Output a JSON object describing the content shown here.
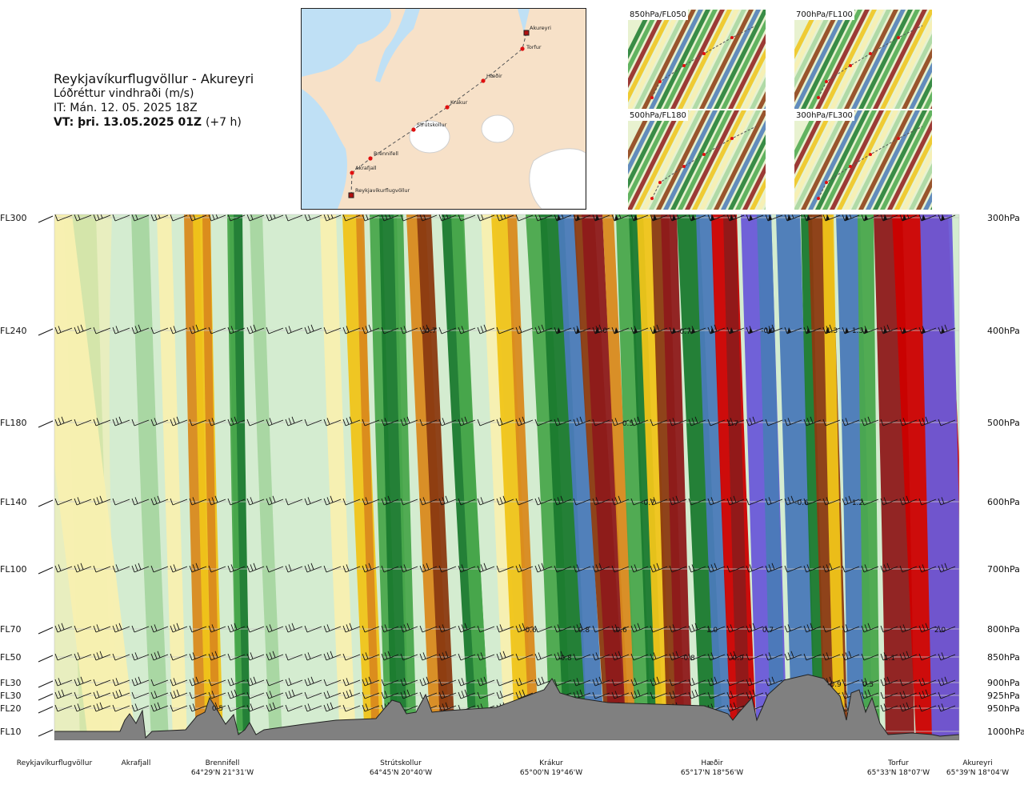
{
  "header": {
    "title": "Reykjavíkurflugvöllur - Akureyri",
    "subtitle": "Lóðréttur vindhraði (m/s)",
    "issue_time": "IT: Mán. 12. 05. 2025 18Z",
    "valid_time": "VT: þri. 13.05.2025 01Z",
    "valid_offset": "(+7 h)"
  },
  "route_map": {
    "points": [
      "Reykjavíkurflugvöllur",
      "Akrafjall",
      "Brennifell",
      "Strútskollur",
      "Krákur",
      "Hæðir",
      "Torfur",
      "Akureyri"
    ]
  },
  "thumbnails": [
    {
      "label": "850hPa/FL050"
    },
    {
      "label": "700hPa/FL100"
    },
    {
      "label": "500hPa/FL180"
    },
    {
      "label": "300hPa/FL300"
    }
  ],
  "chart_data": {
    "type": "heatmap",
    "title": "Lóðréttur vindhraði (m/s)",
    "levels": [
      {
        "fl": "FL300",
        "hpa": "300hPa"
      },
      {
        "fl": "FL240",
        "hpa": "400hPa"
      },
      {
        "fl": "FL180",
        "hpa": "500hPa"
      },
      {
        "fl": "FL140",
        "hpa": "600hPa"
      },
      {
        "fl": "FL100",
        "hpa": "700hPa"
      },
      {
        "fl": "FL70",
        "hpa": "800hPa"
      },
      {
        "fl": "FL50",
        "hpa": "850hPa"
      },
      {
        "fl": "FL30",
        "hpa": "900hPa"
      },
      {
        "fl": "FL30",
        "hpa": "925hPa"
      },
      {
        "fl": "FL20",
        "hpa": "950hPa"
      },
      {
        "fl": "FL10",
        "hpa": "1000hPa"
      }
    ],
    "value_labels": [
      "0.5",
      "-0.7",
      "-0.6",
      "-0.8",
      "0.8",
      "-0.6",
      "0.5",
      "-0.7",
      "-0.8",
      "-0.7",
      "-0.9",
      "1.0",
      "0.7",
      "-0.6",
      "1.1",
      "1.2",
      "-0.9",
      "2.0",
      "1.3",
      "-0.9",
      "1.7",
      "1.3",
      "1.0",
      "0.5"
    ],
    "locations": [
      {
        "name": "Reykjavíkurflugvöllur",
        "coord": ""
      },
      {
        "name": "Akrafjall",
        "coord": ""
      },
      {
        "name": "Brennifell",
        "coord": "64°29'N 21°31'W"
      },
      {
        "name": "Strútskollur",
        "coord": "64°45'N 20°40'W"
      },
      {
        "name": "Krákur",
        "coord": "65°00'N 19°46'W"
      },
      {
        "name": "Hæðir",
        "coord": "65°17'N 18°56'W"
      },
      {
        "name": "Torfur",
        "coord": "65°33'N 18°07'W"
      },
      {
        "name": "Akureyri",
        "coord": "65°39'N 18°04'W"
      }
    ],
    "colors": {
      "lightgreen": "#d4ecd0",
      "midgreen": "#a6d6a0",
      "green": "#4aa84c",
      "darkgreen": "#1a7a2e",
      "paleyellow": "#f8f0b0",
      "yellow": "#f0c419",
      "orange": "#d98a1e",
      "brown": "#8b3a10",
      "darkred": "#8e1a1a",
      "red": "#cc0000",
      "blue": "#4a7ab8",
      "purple": "#6a5ad8",
      "terrain": "#808080"
    }
  }
}
